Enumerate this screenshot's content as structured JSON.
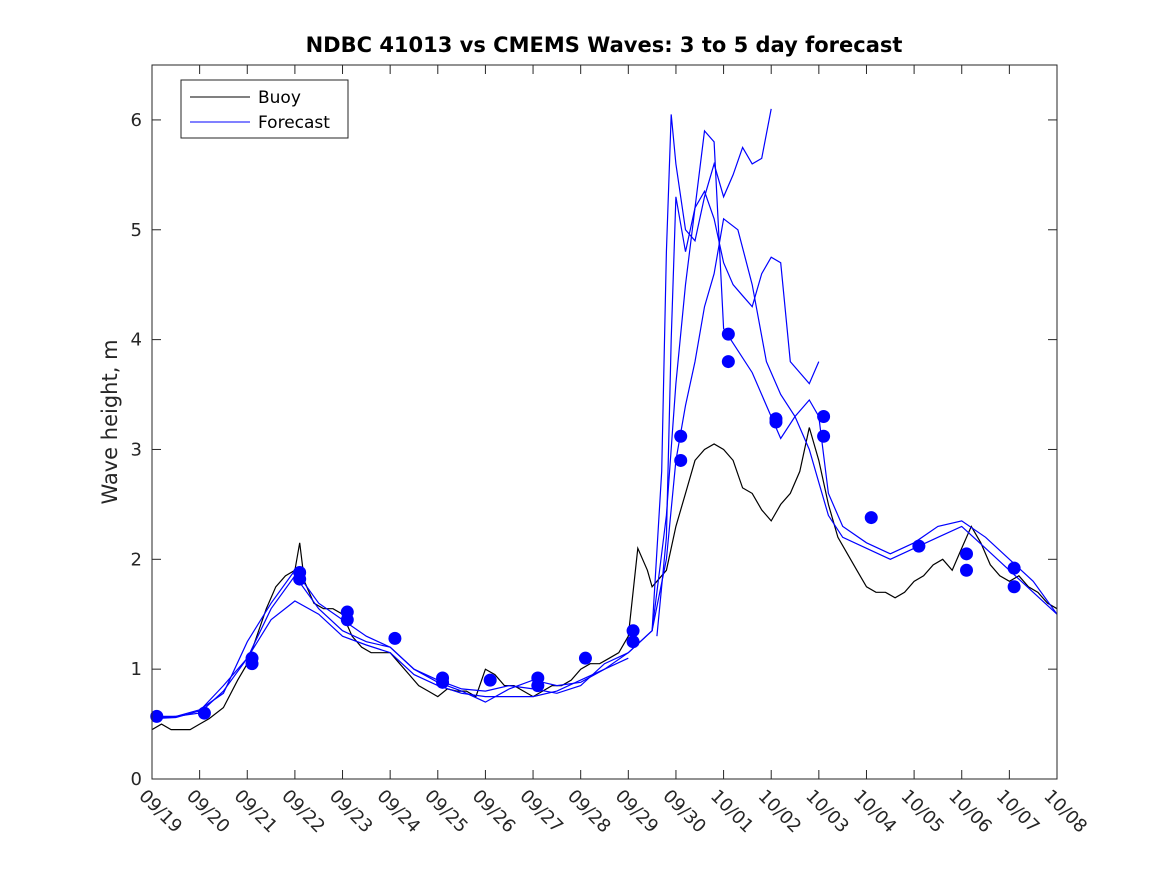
{
  "colors": {
    "buoy": "#000000",
    "forecast": "#0000ff",
    "axis": "#262626"
  },
  "chart_data": {
    "type": "line",
    "title": "NDBC 41013 vs CMEMS Waves: 3 to 5 day forecast",
    "xlabel": "",
    "ylabel": "Wave height, m",
    "xlim": [
      0,
      19
    ],
    "ylim": [
      0,
      6.5
    ],
    "grid": false,
    "legend_position": "top-left",
    "x_tick_values": [
      0,
      1,
      2,
      3,
      4,
      5,
      6,
      7,
      8,
      9,
      10,
      11,
      12,
      13,
      14,
      15,
      16,
      17,
      18,
      19
    ],
    "x_tick_labels": [
      "09/19",
      "09/20",
      "09/21",
      "09/22",
      "09/23",
      "09/24",
      "09/25",
      "09/26",
      "09/27",
      "09/28",
      "09/29",
      "09/30",
      "10/01",
      "10/02",
      "10/03",
      "10/04",
      "10/05",
      "10/06",
      "10/07",
      "10/08"
    ],
    "y_ticks": [
      0,
      1,
      2,
      3,
      4,
      5,
      6
    ],
    "legend": [
      "Buoy",
      "Forecast"
    ],
    "series": [
      {
        "name": "Buoy",
        "style": "line",
        "x": [
          0,
          0.2,
          0.4,
          0.6,
          0.8,
          1.0,
          1.2,
          1.5,
          1.8,
          2.0,
          2.2,
          2.4,
          2.6,
          2.8,
          3.0,
          3.1,
          3.2,
          3.4,
          3.6,
          3.8,
          4.0,
          4.2,
          4.4,
          4.6,
          4.8,
          5.0,
          5.2,
          5.4,
          5.6,
          5.8,
          6.0,
          6.2,
          6.4,
          6.6,
          6.8,
          7.0,
          7.2,
          7.4,
          7.6,
          7.8,
          8.0,
          8.2,
          8.4,
          8.6,
          8.8,
          9.0,
          9.2,
          9.4,
          9.6,
          9.8,
          10.0,
          10.2,
          10.4,
          10.5,
          10.6,
          10.8,
          11.0,
          11.2,
          11.4,
          11.6,
          11.8,
          12.0,
          12.2,
          12.4,
          12.6,
          12.8,
          13.0,
          13.2,
          13.4,
          13.6,
          13.8,
          14.0,
          14.2,
          14.4,
          14.6,
          14.8,
          15.0,
          15.2,
          15.4,
          15.6,
          15.8,
          16.0,
          16.2,
          16.4,
          16.6,
          16.8,
          17.0,
          17.2,
          17.4,
          17.6,
          17.8,
          18.0,
          18.2,
          18.4,
          18.6,
          18.8,
          19.0
        ],
        "y": [
          0.45,
          0.5,
          0.45,
          0.45,
          0.45,
          0.5,
          0.55,
          0.65,
          0.9,
          1.05,
          1.3,
          1.55,
          1.75,
          1.85,
          1.9,
          2.15,
          1.8,
          1.6,
          1.55,
          1.55,
          1.5,
          1.3,
          1.2,
          1.15,
          1.15,
          1.15,
          1.05,
          0.95,
          0.85,
          0.8,
          0.75,
          0.82,
          0.8,
          0.8,
          0.75,
          1.0,
          0.95,
          0.85,
          0.85,
          0.8,
          0.75,
          0.8,
          0.85,
          0.85,
          0.9,
          1.0,
          1.05,
          1.05,
          1.1,
          1.15,
          1.3,
          2.1,
          1.9,
          1.75,
          1.8,
          1.9,
          2.3,
          2.6,
          2.9,
          3.0,
          3.05,
          3.0,
          2.9,
          2.65,
          2.6,
          2.45,
          2.35,
          2.5,
          2.6,
          2.8,
          3.2,
          2.9,
          2.5,
          2.2,
          2.05,
          1.9,
          1.75,
          1.7,
          1.7,
          1.65,
          1.7,
          1.8,
          1.85,
          1.95,
          2.0,
          1.9,
          2.1,
          2.3,
          2.15,
          1.95,
          1.85,
          1.8,
          1.85,
          1.75,
          1.7,
          1.6,
          1.55
        ]
      },
      {
        "name": "Forecast",
        "style": "line",
        "x": [
          0,
          0.5,
          1.0,
          1.5,
          2.0,
          2.5,
          3.0,
          3.5,
          4.0,
          4.5,
          5.0,
          5.5,
          6.0,
          6.5,
          7.0,
          7.5,
          8.0,
          8.5,
          9.0,
          9.5,
          10.0,
          10.5,
          10.8,
          11.0,
          11.2,
          11.4,
          11.6,
          11.8,
          12.0,
          12.3,
          12.6,
          12.9,
          13.2,
          13.5,
          13.8,
          14.0,
          14.2,
          14.5,
          15.0,
          15.5,
          16.0,
          16.5,
          17.0,
          17.5,
          18.0,
          18.5,
          19.0
        ],
        "y": [
          0.55,
          0.57,
          0.6,
          0.8,
          1.1,
          1.55,
          1.85,
          1.55,
          1.35,
          1.25,
          1.2,
          1.0,
          0.9,
          0.82,
          0.8,
          0.85,
          0.82,
          0.78,
          0.85,
          1.05,
          1.15,
          1.35,
          2.0,
          2.9,
          3.4,
          3.8,
          4.3,
          4.6,
          5.1,
          5.0,
          4.5,
          3.8,
          3.5,
          3.3,
          3.0,
          2.7,
          2.4,
          2.2,
          2.1,
          2.0,
          2.1,
          2.2,
          2.3,
          2.1,
          1.9,
          1.7,
          1.5
        ]
      },
      {
        "name": "Forecast",
        "style": "line",
        "x": [
          0,
          0.5,
          1.0,
          1.5,
          2.0,
          2.5,
          3.0,
          3.5,
          4.0,
          4.5,
          5.0,
          5.5,
          6.0,
          6.5,
          7.0,
          7.5,
          8.0,
          8.5,
          9.0,
          9.5,
          10.0,
          10.5,
          10.8,
          11.0,
          11.2,
          11.4,
          11.6,
          11.8,
          12.0,
          12.3,
          12.6,
          12.9,
          13.2,
          13.5,
          13.8,
          14.0,
          14.2,
          14.5,
          15.0,
          15.5,
          16.0,
          16.5,
          17.0,
          17.5,
          18.0,
          18.5,
          19.0
        ],
        "y": [
          0.55,
          0.56,
          0.62,
          0.85,
          1.1,
          1.45,
          1.62,
          1.5,
          1.3,
          1.22,
          1.15,
          0.95,
          0.85,
          0.78,
          0.75,
          0.75,
          0.75,
          0.8,
          0.9,
          1.0,
          1.15,
          1.35,
          2.4,
          3.6,
          4.5,
          5.2,
          5.9,
          5.8,
          4.1,
          3.9,
          3.7,
          3.4,
          3.1,
          3.3,
          3.45,
          3.3,
          2.6,
          2.3,
          2.15,
          2.05,
          2.15,
          2.3,
          2.35,
          2.2,
          2.0,
          1.8,
          1.5
        ]
      },
      {
        "name": "Forecast",
        "style": "line",
        "x": [
          10.5,
          10.7,
          10.8,
          10.9,
          11.0,
          11.2,
          11.4,
          11.6,
          11.8,
          12.0,
          12.2,
          12.4,
          12.6,
          12.8,
          13.0
        ],
        "y": [
          1.35,
          2.8,
          4.8,
          6.05,
          5.6,
          5.0,
          4.9,
          5.3,
          5.6,
          5.3,
          5.5,
          5.75,
          5.6,
          5.65,
          6.1
        ]
      },
      {
        "name": "Forecast",
        "style": "line",
        "x": [
          10.6,
          10.8,
          10.9,
          11.0,
          11.2,
          11.4,
          11.6,
          11.8,
          12.0,
          12.2,
          12.4,
          12.6,
          12.8,
          13.0,
          13.2,
          13.4,
          13.6,
          13.8,
          14.0
        ],
        "y": [
          1.3,
          2.2,
          4.0,
          5.3,
          4.8,
          5.2,
          5.35,
          5.1,
          4.7,
          4.5,
          4.4,
          4.3,
          4.6,
          4.75,
          4.7,
          3.8,
          3.7,
          3.6,
          3.8
        ]
      },
      {
        "name": "Forecast",
        "style": "line",
        "x": [
          0,
          0.5,
          1.0,
          1.5,
          2.0,
          2.5,
          3.0,
          3.5,
          4.0,
          4.5,
          5.0,
          5.5,
          6.0,
          6.5,
          7.0,
          7.5,
          8.0,
          8.5,
          9.0,
          9.5,
          10.0
        ],
        "y": [
          0.57,
          0.57,
          0.63,
          0.78,
          1.25,
          1.6,
          1.9,
          1.6,
          1.45,
          1.3,
          1.2,
          1.0,
          0.88,
          0.8,
          0.7,
          0.82,
          0.9,
          0.85,
          0.88,
          1.0,
          1.1
        ]
      },
      {
        "name": "Forecast markers",
        "style": "markers",
        "x": [
          0.1,
          1.1,
          2.1,
          2.1,
          3.1,
          3.1,
          4.1,
          4.1,
          5.1,
          6.1,
          6.1,
          7.1,
          8.1,
          8.1,
          9.1,
          10.1,
          10.1,
          11.1,
          11.1,
          12.1,
          12.1,
          13.1,
          13.1,
          14.1,
          14.1,
          15.1,
          16.1,
          17.1,
          17.1,
          18.1,
          18.1
        ],
        "y": [
          0.57,
          0.6,
          1.05,
          1.1,
          1.82,
          1.88,
          1.45,
          1.52,
          1.28,
          0.92,
          0.88,
          0.9,
          0.85,
          0.92,
          1.1,
          1.25,
          1.35,
          2.9,
          3.12,
          3.8,
          4.05,
          3.25,
          3.28,
          3.12,
          3.3,
          2.38,
          2.12,
          1.9,
          2.05,
          1.75,
          1.92
        ]
      }
    ]
  }
}
